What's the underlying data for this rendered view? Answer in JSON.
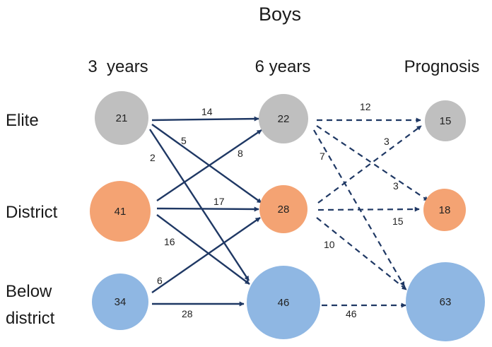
{
  "title": "Boys",
  "columns": {
    "col1": "3  years",
    "col2": "6 years",
    "col3": "Prognosis"
  },
  "rows": {
    "elite": "Elite",
    "district": "District",
    "below_line1": "Below",
    "below_line2": "district"
  },
  "colors": {
    "elite": "#bfbfbf",
    "district": "#f4a373",
    "below": "#8fb7e3",
    "arrow": "#1f3864"
  },
  "nodes": {
    "y3_elite": "21",
    "y3_district": "41",
    "y3_below": "34",
    "y6_elite": "22",
    "y6_district": "28",
    "y6_below": "46",
    "prog_elite": "15",
    "prog_district": "18",
    "prog_below": "63"
  },
  "flows": {
    "e3_e6": "14",
    "e3_d6": "5",
    "e3_b6": "2",
    "d3_e6": "8",
    "d3_d6": "17",
    "d3_b6": "16",
    "b3_d6": "6",
    "b3_b6": "28",
    "e6_ep": "12",
    "e6_dp": "3",
    "e6_bp": "7",
    "d6_ep": "3",
    "d6_dp": "15",
    "d6_bp": "10",
    "b6_bp": "46"
  }
}
